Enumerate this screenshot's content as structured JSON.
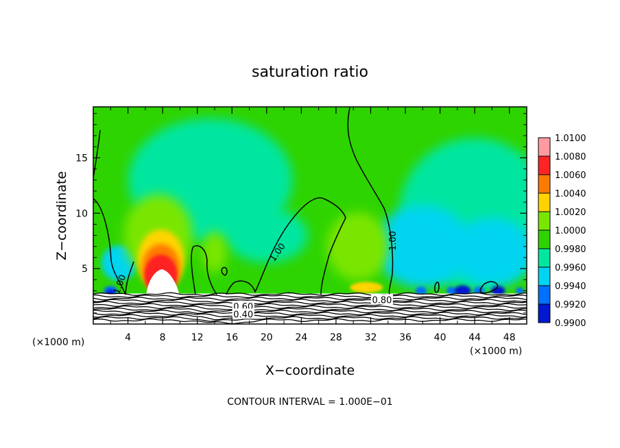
{
  "chart_data": {
    "type": "heatmap",
    "title": "saturation ratio",
    "xlabel": "X−coordinate",
    "ylabel": "Z−coordinate",
    "x_unit": "(×1000 m)",
    "y_unit": "(×1000 m)",
    "xlim": [
      0,
      50
    ],
    "ylim": [
      0,
      19.6
    ],
    "x_ticks": [
      4,
      8,
      12,
      16,
      20,
      24,
      28,
      32,
      36,
      40,
      44,
      48
    ],
    "y_ticks": [
      5,
      10,
      15
    ],
    "colorbar": {
      "levels": [
        "1.0100",
        "1.0080",
        "1.0060",
        "1.0040",
        "1.0020",
        "1.0000",
        "0.9980",
        "0.9960",
        "0.9940",
        "0.9920",
        "0.9900"
      ],
      "colors": [
        "#ff9aa0",
        "#ff2424",
        "#ff7a00",
        "#ffd400",
        "#7ae600",
        "#2ed400",
        "#00e6a0",
        "#00d4f0",
        "#0070ff",
        "#0018d0",
        "#6a1aa8"
      ]
    },
    "contour_interval": "CONTOUR INTERVAL = 1.000E−01",
    "contour_labels": [
      {
        "text": "1.00",
        "x": 3.0,
        "z": 3.6,
        "angle": -70
      },
      {
        "text": "1.00",
        "x": 21.2,
        "z": 6.5,
        "angle": -55
      },
      {
        "text": "1.00",
        "x": 34.5,
        "z": 7.5,
        "angle": -90
      },
      {
        "text": "0.80",
        "x": 33.3,
        "z": 2.2,
        "angle": 0
      },
      {
        "text": "0.60",
        "x": 17.3,
        "z": 1.6,
        "angle": 0
      },
      {
        "text": "0.40",
        "x": 17.3,
        "z": 0.9,
        "angle": 0
      }
    ],
    "features": [
      {
        "kind": "supersaturated-core",
        "x": 7.5,
        "z": 5.0,
        "max_ratio": "1.0100"
      },
      {
        "kind": "subsaturated-low-level",
        "x_range": [
          36,
          50
        ],
        "z": 2.8,
        "min_ratio": "0.9920"
      }
    ]
  }
}
